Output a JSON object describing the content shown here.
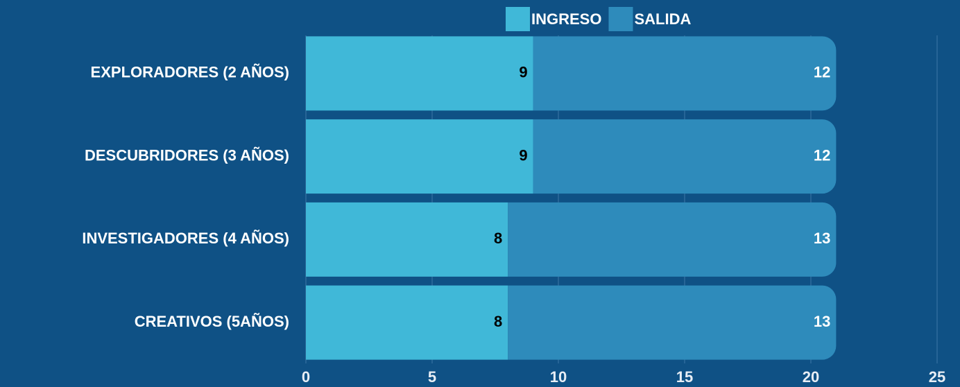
{
  "chart_data": {
    "type": "stacked-barh",
    "categories": [
      "EXPLORADORES (2 AÑOS)",
      "DESCUBRIDORES (3 AÑOS)",
      "INVESTIGADORES (4 AÑOS)",
      "CREATIVOS (5AÑOS)"
    ],
    "series": [
      {
        "name": "INGRESO",
        "color": "#40b8d8",
        "values": [
          9,
          9,
          8,
          8
        ]
      },
      {
        "name": "SALIDA",
        "color": "#2e8bbb",
        "values": [
          12,
          12,
          13,
          13
        ]
      }
    ],
    "xlim": [
      0,
      25
    ],
    "xticks": [
      0,
      5,
      10,
      15,
      20,
      25
    ],
    "grid": true,
    "legend": "top"
  }
}
